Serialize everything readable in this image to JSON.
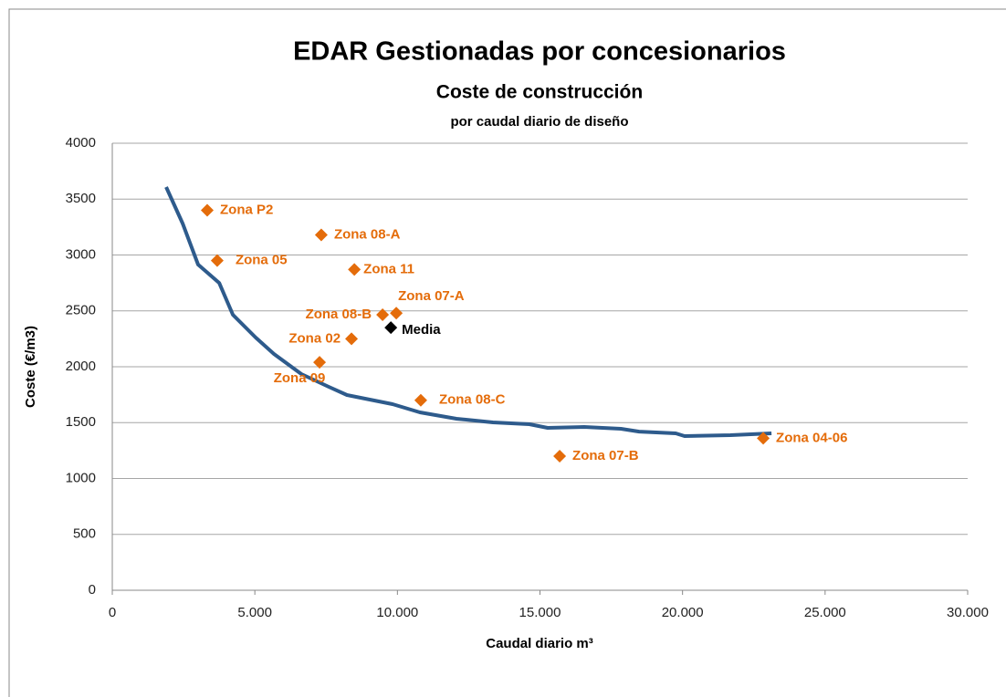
{
  "chart_data": {
    "type": "scatter",
    "title": "EDAR Gestionadas por concesionarios",
    "subtitles": [
      "Coste  de construcción",
      "por caudal diario de diseño"
    ],
    "x_label": "Caudal diario m³",
    "y_label": "Coste (€/m3)",
    "xlim": [
      0,
      30000
    ],
    "xticks": [
      0,
      {
        "value": 5000,
        "label": "5.000"
      },
      {
        "value": 10000,
        "label": "10.000"
      },
      {
        "value": 15000,
        "label": "15.000"
      },
      {
        "value": 20000,
        "label": "20.000"
      },
      {
        "value": 25000,
        "label": "25.000"
      },
      {
        "value": 30000,
        "label": "30.000"
      }
    ],
    "ylim": [
      0,
      4000
    ],
    "yticks": [
      0,
      500,
      1000,
      1500,
      2000,
      2500,
      3000,
      3500,
      4000
    ],
    "grid": true,
    "series": [
      {
        "type": "line",
        "color": "#2e5b8c",
        "x": [
          1890,
          2470,
          3010,
          3750,
          4230,
          5030,
          5670,
          6630,
          7590,
          8230,
          8870,
          9830,
          10790,
          12070,
          13350,
          14630,
          15270,
          16550,
          17840,
          18480,
          19760,
          20070,
          21680,
          23120
        ],
        "y": [
          3608,
          3282,
          2914,
          2750,
          2465,
          2261,
          2114,
          1935,
          1820,
          1747,
          1714,
          1665,
          1592,
          1535,
          1502,
          1486,
          1453,
          1461,
          1445,
          1420,
          1404,
          1380,
          1388,
          1404
        ]
      },
      {
        "type": "scatter",
        "color": "#e46c0a",
        "labels": [
          "Zona P2",
          "Zona 08-A",
          "Zona 05",
          "Zona 11",
          "Zona 08-B",
          "Zona 07-A",
          "Zona 02",
          "Zona 09",
          "Zona 08-C",
          "Zona 07-B",
          "Zona 04-06"
        ],
        "x": [
          3330,
          7330,
          3680,
          8490,
          9480,
          9960,
          8390,
          7270,
          10820,
          15690,
          22830
        ],
        "y": [
          3400,
          3180,
          2950,
          2870,
          2465,
          2480,
          2250,
          2040,
          1700,
          1200,
          1360
        ]
      },
      {
        "type": "scatter",
        "color": "#000000",
        "labels": [
          "Media"
        ],
        "x": [
          9770
        ],
        "y": [
          2350
        ]
      }
    ]
  }
}
